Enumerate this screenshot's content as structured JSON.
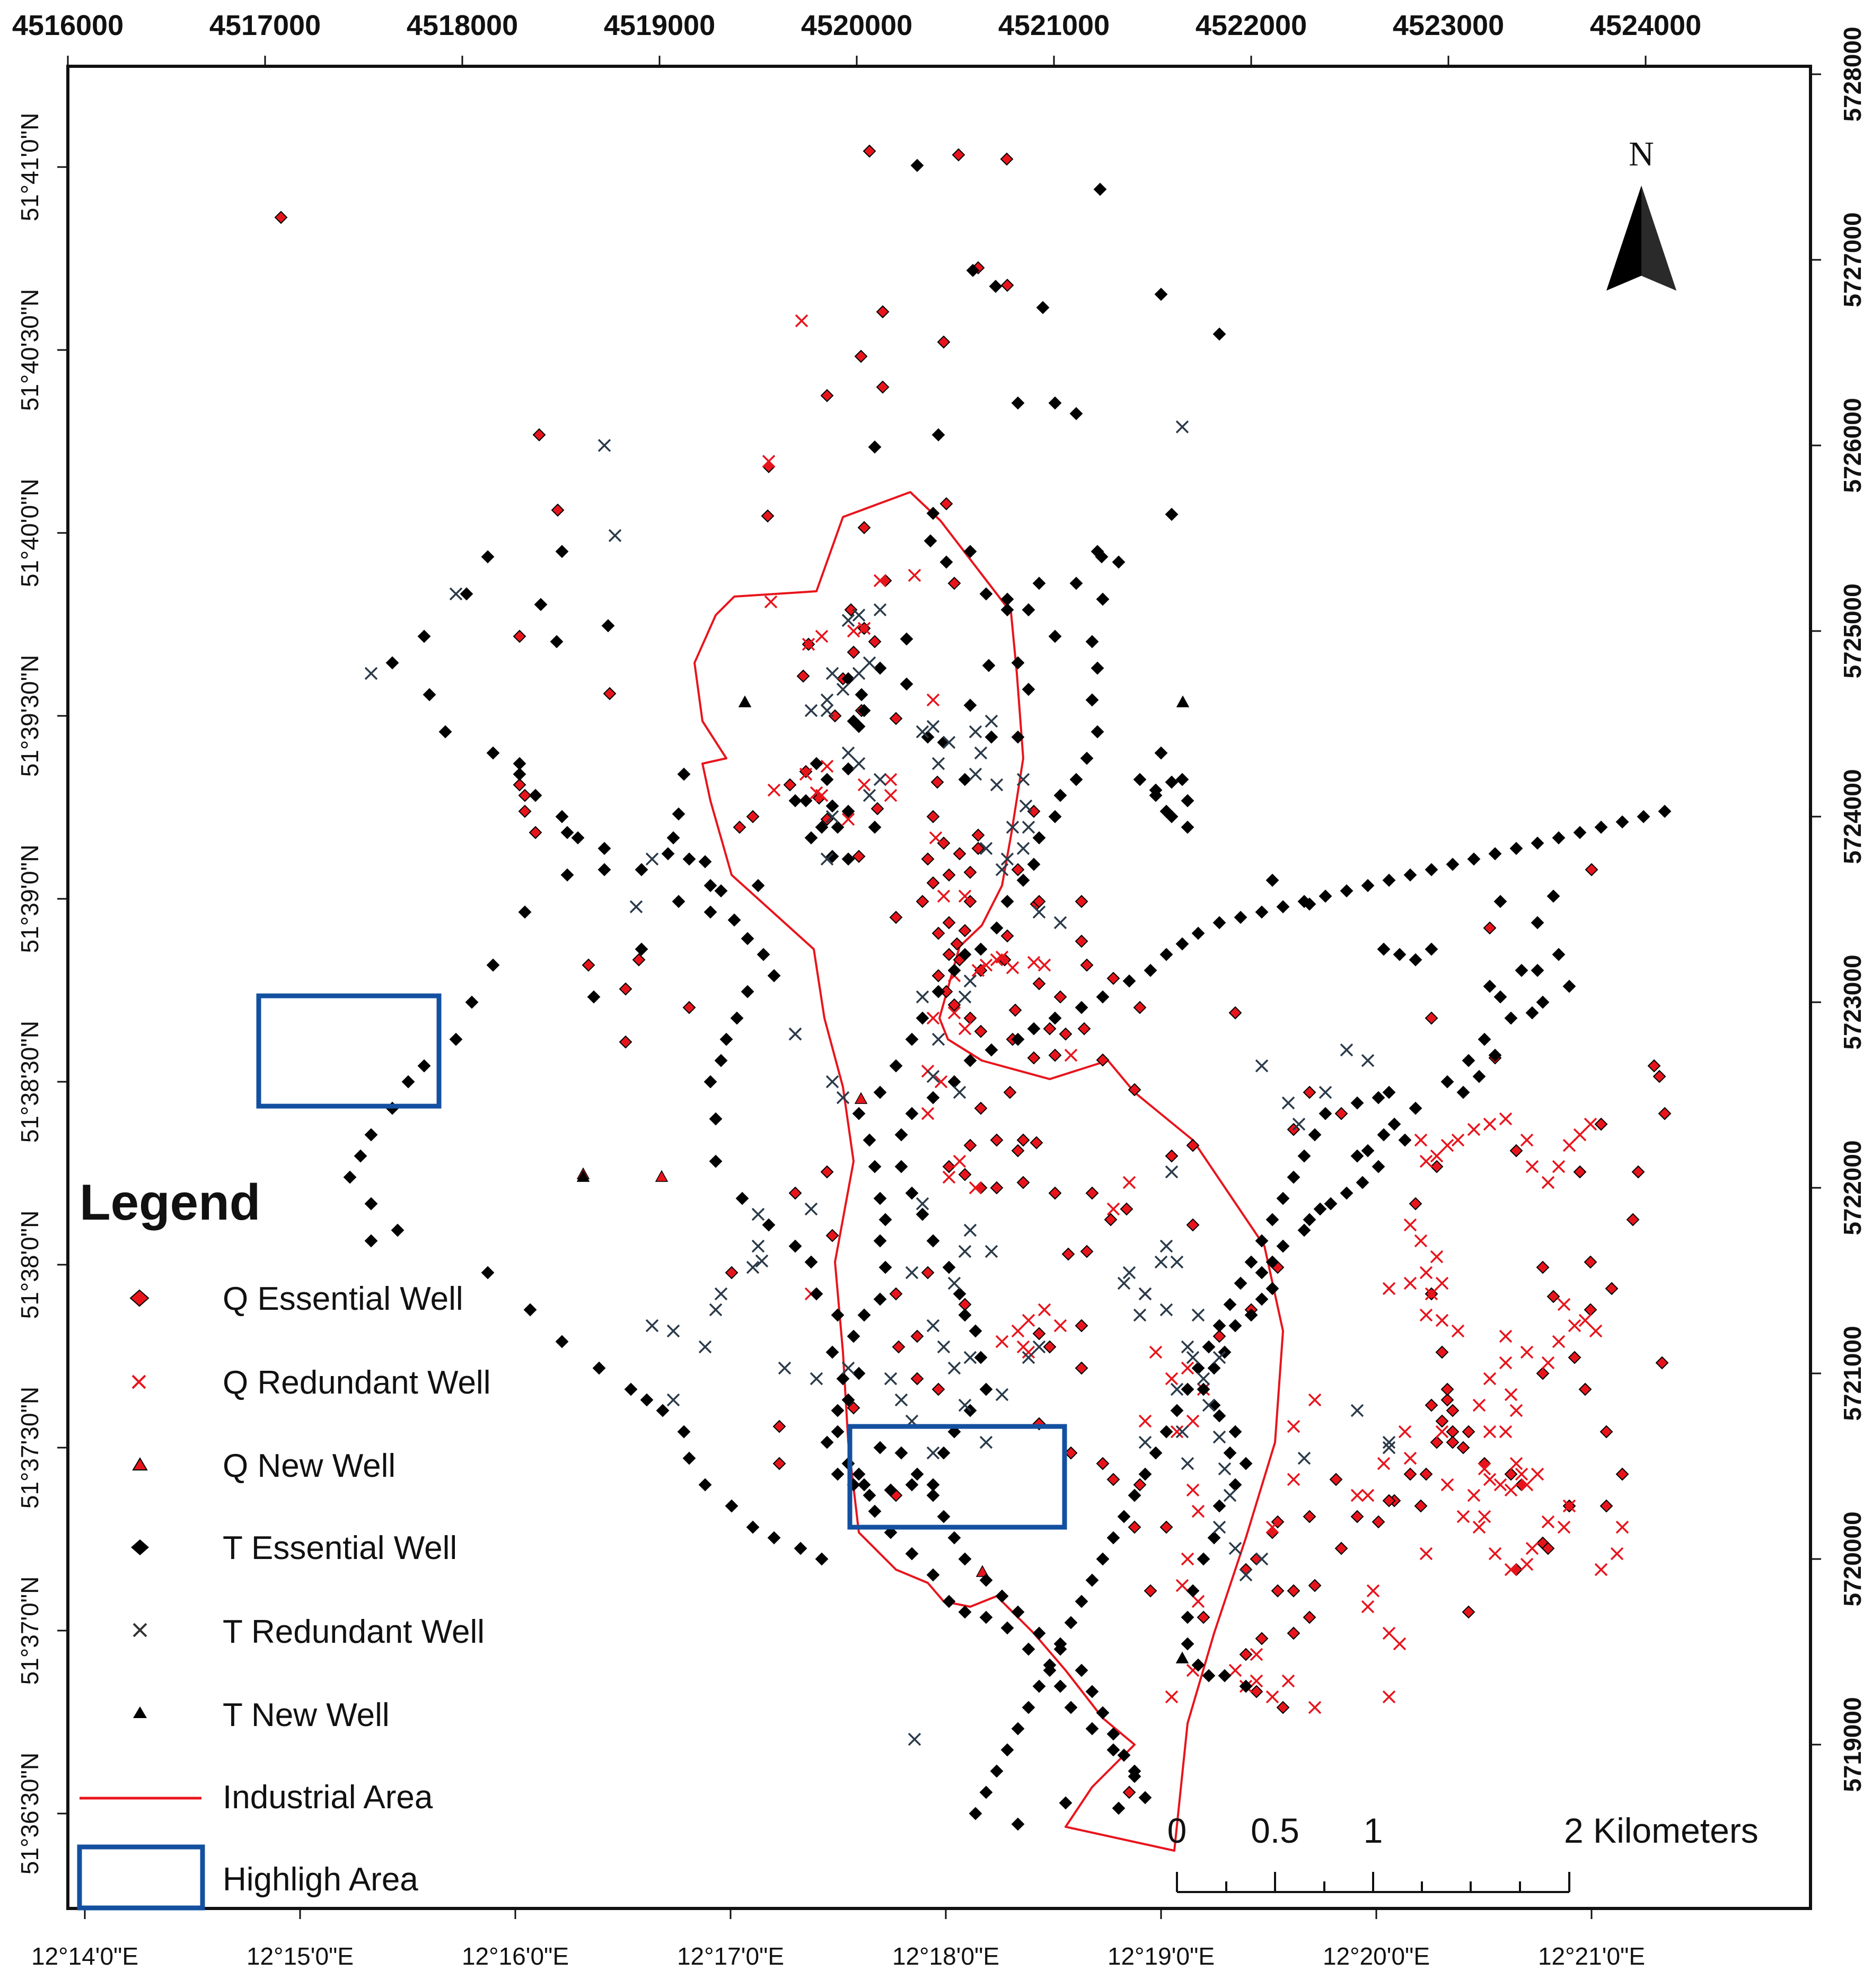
{
  "map": {
    "top_ticks": [
      "4516000",
      "4517000",
      "4518000",
      "4519000",
      "4520000",
      "4521000",
      "4522000",
      "4523000",
      "4524000"
    ],
    "right_ticks": [
      "5728000",
      "5727000",
      "5726000",
      "5725000",
      "5724000",
      "5723000",
      "5722000",
      "5721000",
      "5720000",
      "5719000"
    ],
    "left_ticks": [
      "51°41'0\"N",
      "51°40'30\"N",
      "51°40'0\"N",
      "51°39'30\"N",
      "51°39'0\"N",
      "51°38'30\"N",
      "51°38'0\"N",
      "51°37'30\"N",
      "51°37'0\"N",
      "51°36'30\"N"
    ],
    "bottom_ticks": [
      "12°14'0\"E",
      "12°15'0\"E",
      "12°16'0\"E",
      "12°17'0\"E",
      "12°18'0\"E",
      "12°19'0\"E",
      "12°20'0\"E",
      "12°21'0\"E"
    ],
    "north_label": "N",
    "scale_labels": [
      "0",
      "0.5",
      "1",
      "2 Kilometers"
    ],
    "colors": {
      "q": "#e8141c",
      "t": "#000000",
      "industrial": "#e8141c",
      "highlight": "#1450a0"
    }
  },
  "legend": {
    "title": "Legend",
    "items": [
      {
        "label": "Q  Essential Well",
        "symbol": "q-essential-icon"
      },
      {
        "label": "Q  Redundant Well",
        "symbol": "q-redundant-icon"
      },
      {
        "label": "Q  New Well",
        "symbol": "q-new-icon"
      },
      {
        "label": "T  Essential Well",
        "symbol": "t-essential-icon"
      },
      {
        "label": "T  Redundant Well",
        "symbol": "t-redundant-icon"
      },
      {
        "label": "T  New Well",
        "symbol": "t-new-icon"
      },
      {
        "label": "Industrial Area",
        "symbol": "industrial-area-line-icon"
      },
      {
        "label": "Highligh Area",
        "symbol": "highlight-area-box-icon"
      }
    ]
  }
}
